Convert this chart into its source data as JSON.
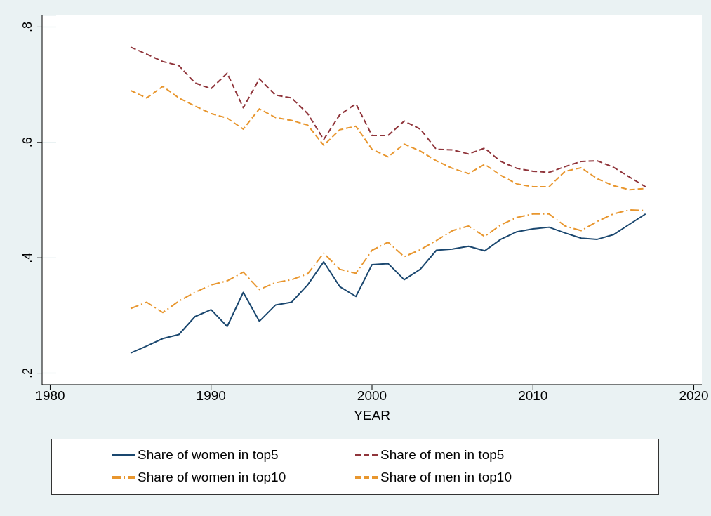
{
  "chart_data": {
    "type": "line",
    "xlabel": "YEAR",
    "x": [
      1985,
      1986,
      1987,
      1988,
      1989,
      1990,
      1991,
      1992,
      1993,
      1994,
      1995,
      1996,
      1997,
      1998,
      1999,
      2000,
      2001,
      2002,
      2003,
      2004,
      2005,
      2006,
      2007,
      2008,
      2009,
      2010,
      2011,
      2012,
      2013,
      2014,
      2015,
      2016,
      2017
    ],
    "series": [
      {
        "name": "Share of women in top5",
        "color": "#1a476f",
        "line_style": "solid",
        "values": [
          0.235,
          0.247,
          0.26,
          0.267,
          0.298,
          0.31,
          0.281,
          0.34,
          0.29,
          0.318,
          0.323,
          0.353,
          0.393,
          0.35,
          0.333,
          0.388,
          0.39,
          0.362,
          0.38,
          0.413,
          0.415,
          0.42,
          0.412,
          0.432,
          0.445,
          0.45,
          0.453,
          0.443,
          0.434,
          0.432,
          0.44,
          0.458,
          0.476
        ]
      },
      {
        "name": "Share of men in top5",
        "color": "#90353b",
        "line_style": "dashed",
        "values": [
          0.765,
          0.753,
          0.74,
          0.733,
          0.703,
          0.693,
          0.72,
          0.66,
          0.71,
          0.682,
          0.677,
          0.65,
          0.605,
          0.648,
          0.667,
          0.612,
          0.612,
          0.637,
          0.623,
          0.588,
          0.587,
          0.58,
          0.59,
          0.567,
          0.555,
          0.55,
          0.548,
          0.558,
          0.567,
          0.568,
          0.557,
          0.54,
          0.523
        ]
      },
      {
        "name": "Share of women in top10",
        "color": "#e8962e",
        "line_style": "dotted",
        "values": [
          0.312,
          0.323,
          0.305,
          0.325,
          0.34,
          0.353,
          0.36,
          0.375,
          0.345,
          0.357,
          0.362,
          0.372,
          0.408,
          0.38,
          0.373,
          0.413,
          0.427,
          0.402,
          0.414,
          0.43,
          0.447,
          0.455,
          0.437,
          0.457,
          0.47,
          0.476,
          0.476,
          0.455,
          0.447,
          0.463,
          0.476,
          0.483,
          0.482
        ]
      },
      {
        "name": "Share of men in top10",
        "color": "#e8962e",
        "line_style": "dashed",
        "values": [
          0.69,
          0.677,
          0.697,
          0.677,
          0.663,
          0.65,
          0.642,
          0.623,
          0.658,
          0.643,
          0.638,
          0.63,
          0.595,
          0.622,
          0.628,
          0.588,
          0.575,
          0.597,
          0.585,
          0.568,
          0.555,
          0.546,
          0.562,
          0.543,
          0.528,
          0.523,
          0.523,
          0.55,
          0.556,
          0.537,
          0.525,
          0.518,
          0.52
        ]
      }
    ],
    "xlim": [
      1979.5,
      2020.5
    ],
    "xticks": [
      1980,
      1990,
      2000,
      2010,
      2020
    ],
    "ylim": [
      0.18,
      0.82
    ],
    "yticks": [
      {
        "value": 0.2,
        "label": ".2"
      },
      {
        "value": 0.4,
        "label": ".4"
      },
      {
        "value": 0.6,
        "label": ".6"
      },
      {
        "value": 0.8,
        "label": ".8"
      }
    ],
    "grid": "y",
    "legend": "bottom"
  }
}
